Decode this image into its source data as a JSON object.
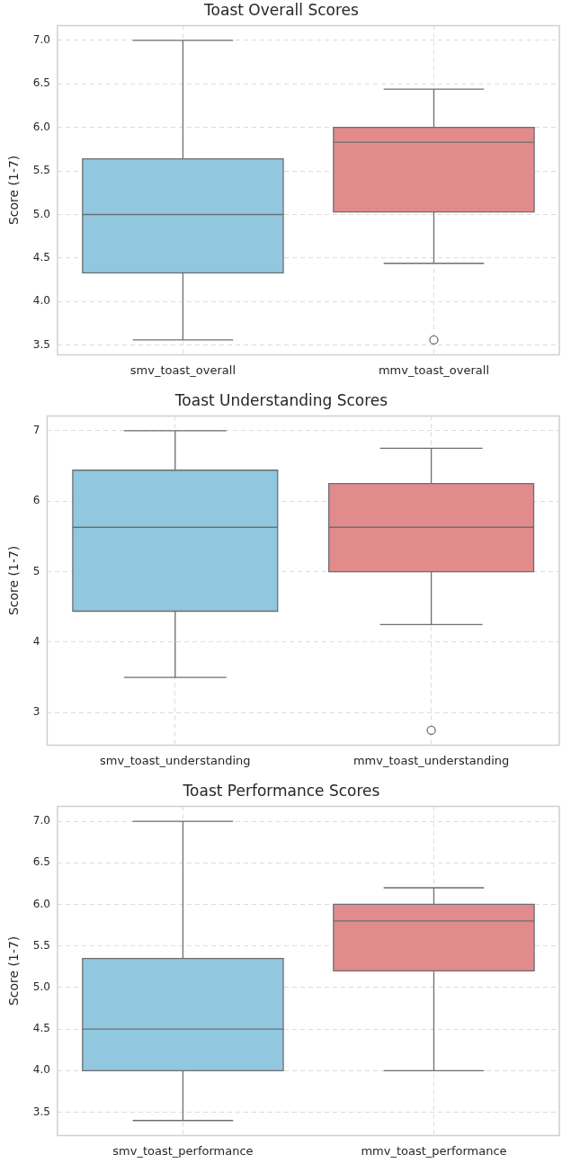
{
  "chart_data": [
    {
      "type": "box",
      "title": "Toast Overall Scores",
      "ylabel": "Score (1-7)",
      "categories": [
        "smv_toast_overall",
        "mmv_toast_overall"
      ],
      "colors": [
        "#92c8df",
        "#e28b8c"
      ],
      "boxes": [
        {
          "low": 3.56,
          "q1": 4.33,
          "median": 5.0,
          "q3": 5.64,
          "high": 7.0
        },
        {
          "low": 4.44,
          "q1": 5.03,
          "median": 5.83,
          "q3": 6.0,
          "high": 6.44,
          "outliers": [
            3.56
          ]
        }
      ],
      "ylim": [
        3.39,
        7.17
      ],
      "yticks": [
        {
          "value": 3.5,
          "label": "3.5"
        },
        {
          "value": 4,
          "label": "4.0"
        },
        {
          "value": 4.5,
          "label": "4.5"
        },
        {
          "value": 5,
          "label": "5.0"
        },
        {
          "value": 5.5,
          "label": "5.5"
        },
        {
          "value": 6,
          "label": "6.0"
        },
        {
          "value": 6.5,
          "label": "6.5"
        },
        {
          "value": 7,
          "label": "7.0"
        }
      ],
      "grid": true
    },
    {
      "type": "box",
      "title": "Toast Understanding Scores",
      "ylabel": "Score (1-7)",
      "categories": [
        "smv_toast_understanding",
        "mmv_toast_understanding"
      ],
      "colors": [
        "#92c8df",
        "#e28b8c"
      ],
      "boxes": [
        {
          "low": 3.5,
          "q1": 4.44,
          "median": 5.63,
          "q3": 6.44,
          "high": 7.0
        },
        {
          "low": 4.25,
          "q1": 5.0,
          "median": 5.63,
          "q3": 6.25,
          "high": 6.75,
          "outliers": [
            2.75
          ]
        }
      ],
      "ylim": [
        2.54,
        7.21
      ],
      "yticks": [
        3,
        4,
        5,
        6,
        7
      ],
      "grid": true
    },
    {
      "type": "box",
      "title": "Toast Performance Scores",
      "ylabel": "Score (1-7)",
      "categories": [
        "smv_toast_performance",
        "mmv_toast_performance"
      ],
      "colors": [
        "#92c8df",
        "#e28b8c"
      ],
      "boxes": [
        {
          "low": 3.4,
          "q1": 4.0,
          "median": 4.5,
          "q3": 5.35,
          "high": 7.0
        },
        {
          "low": 4.0,
          "q1": 5.2,
          "median": 5.8,
          "q3": 6.0,
          "high": 6.2
        }
      ],
      "ylim": [
        3.22,
        7.18
      ],
      "yticks": [
        {
          "value": 3.5,
          "label": "3.5"
        },
        {
          "value": 4,
          "label": "4.0"
        },
        {
          "value": 4.5,
          "label": "4.5"
        },
        {
          "value": 5,
          "label": "5.0"
        },
        {
          "value": 5.5,
          "label": "5.5"
        },
        {
          "value": 6,
          "label": "6.0"
        },
        {
          "value": 6.5,
          "label": "6.5"
        },
        {
          "value": 7,
          "label": "7.0"
        }
      ],
      "grid": true
    }
  ]
}
